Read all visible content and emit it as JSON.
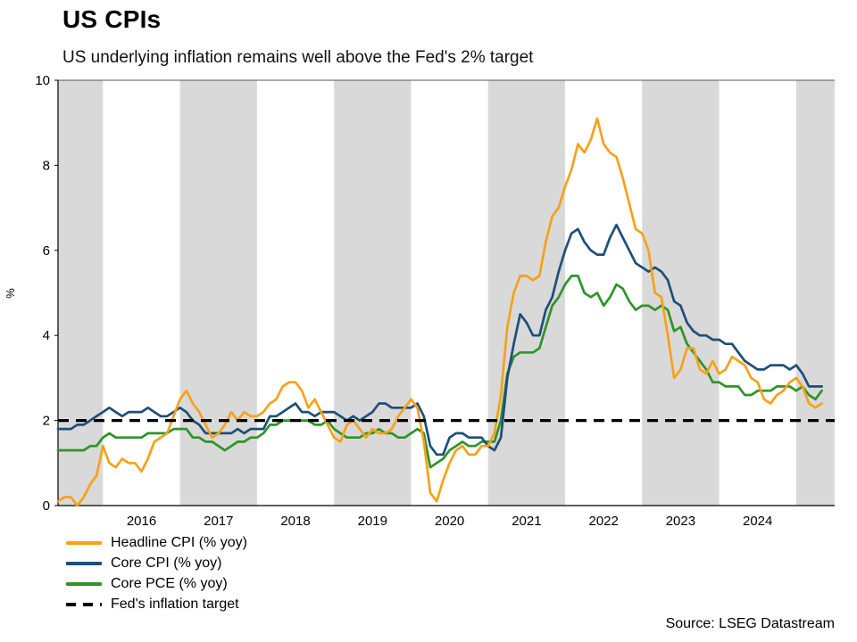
{
  "page": {
    "title": "US CPIs",
    "subtitle": "US underlying inflation remains well above the Fed's 2% target",
    "source": "Source: LSEG Datastream"
  },
  "chart_data": {
    "type": "line",
    "title": "US CPIs",
    "subtitle": "US underlying inflation remains well above the Fed's 2% target",
    "ylabel": "%",
    "ylim": [
      0,
      10
    ],
    "yticks": [
      0,
      2,
      4,
      6,
      8,
      10
    ],
    "frequency": "monthly",
    "x_start": "2015-06",
    "x_end": "2025-05",
    "x_tick_labels": [
      "2016",
      "2017",
      "2018",
      "2019",
      "2020",
      "2021",
      "2022",
      "2023",
      "2024"
    ],
    "grid": false,
    "legend_position": "bottom-left",
    "band_color": "#D9D9D9",
    "shaded_years": [
      2015,
      2017,
      2019,
      2021,
      2023,
      2025
    ],
    "target_line": {
      "label": "Fed's inflation target",
      "value": 2,
      "color": "#000000"
    },
    "series": [
      {
        "name": "Headline CPI (% yoy)",
        "color": "#F7A11A",
        "values": [
          0.1,
          0.2,
          0.2,
          0,
          0.2,
          0.5,
          0.7,
          1.4,
          1,
          0.9,
          1.1,
          1,
          1,
          0.8,
          1.1,
          1.5,
          1.6,
          1.7,
          2.1,
          2.5,
          2.7,
          2.4,
          2.2,
          1.9,
          1.6,
          1.7,
          1.9,
          2.2,
          2,
          2.2,
          2.1,
          2.1,
          2.2,
          2.4,
          2.5,
          2.8,
          2.9,
          2.9,
          2.7,
          2.3,
          2.5,
          2.2,
          1.9,
          1.6,
          1.5,
          1.9,
          2,
          1.8,
          1.6,
          1.8,
          1.7,
          1.7,
          1.8,
          2.1,
          2.3,
          2.5,
          2.3,
          1.5,
          0.3,
          0.1,
          0.6,
          1,
          1.3,
          1.4,
          1.2,
          1.2,
          1.4,
          1.4,
          1.7,
          2.6,
          4.2,
          5,
          5.4,
          5.4,
          5.3,
          5.4,
          6.2,
          6.8,
          7,
          7.5,
          7.9,
          8.5,
          8.3,
          8.6,
          9.1,
          8.5,
          8.3,
          8.2,
          7.7,
          7.1,
          6.5,
          6.4,
          6,
          5,
          4.9,
          4,
          3,
          3.2,
          3.7,
          3.7,
          3.2,
          3.1,
          3.4,
          3.1,
          3.2,
          3.5,
          3.4,
          3.3,
          3,
          2.9,
          2.5,
          2.4,
          2.6,
          2.7,
          2.9,
          3,
          2.8,
          2.4,
          2.3,
          2.4
        ]
      },
      {
        "name": "Core CPI (% yoy)",
        "color": "#1F4E79",
        "values": [
          1.8,
          1.8,
          1.8,
          1.9,
          1.9,
          2,
          2.1,
          2.2,
          2.3,
          2.2,
          2.1,
          2.2,
          2.2,
          2.2,
          2.3,
          2.2,
          2.1,
          2.1,
          2.2,
          2.3,
          2.2,
          2,
          1.9,
          1.7,
          1.7,
          1.7,
          1.7,
          1.7,
          1.8,
          1.7,
          1.8,
          1.8,
          1.8,
          2.1,
          2.1,
          2.2,
          2.3,
          2.4,
          2.2,
          2.2,
          2.1,
          2.2,
          2.2,
          2.2,
          2.1,
          2,
          2.1,
          2,
          2.1,
          2.2,
          2.4,
          2.4,
          2.3,
          2.3,
          2.3,
          2.3,
          2.4,
          2.1,
          1.4,
          1.2,
          1.2,
          1.6,
          1.7,
          1.7,
          1.6,
          1.6,
          1.6,
          1.4,
          1.3,
          1.6,
          3,
          3.8,
          4.5,
          4.3,
          4,
          4,
          4.6,
          4.9,
          5.5,
          6,
          6.4,
          6.5,
          6.2,
          6,
          5.9,
          5.9,
          6.3,
          6.6,
          6.3,
          6,
          5.7,
          5.6,
          5.5,
          5.6,
          5.5,
          5.3,
          4.8,
          4.7,
          4.3,
          4.1,
          4,
          4,
          3.9,
          3.9,
          3.8,
          3.8,
          3.6,
          3.4,
          3.3,
          3.2,
          3.2,
          3.3,
          3.3,
          3.3,
          3.2,
          3.3,
          3.1,
          2.8,
          2.8,
          2.8
        ]
      },
      {
        "name": "Core PCE (% yoy)",
        "color": "#2E9428",
        "values": [
          1.3,
          1.3,
          1.3,
          1.3,
          1.3,
          1.4,
          1.4,
          1.6,
          1.7,
          1.6,
          1.6,
          1.6,
          1.6,
          1.6,
          1.7,
          1.7,
          1.7,
          1.7,
          1.8,
          1.8,
          1.8,
          1.6,
          1.6,
          1.5,
          1.5,
          1.4,
          1.3,
          1.4,
          1.5,
          1.5,
          1.6,
          1.6,
          1.7,
          1.9,
          1.9,
          2,
          2,
          2,
          2,
          2,
          1.9,
          1.9,
          2,
          1.8,
          1.7,
          1.6,
          1.6,
          1.6,
          1.7,
          1.7,
          1.8,
          1.7,
          1.7,
          1.6,
          1.6,
          1.7,
          1.8,
          1.7,
          0.9,
          1,
          1.1,
          1.3,
          1.4,
          1.5,
          1.4,
          1.4,
          1.5,
          1.5,
          1.5,
          2,
          3.1,
          3.5,
          3.6,
          3.6,
          3.6,
          3.7,
          4.2,
          4.7,
          4.9,
          5.2,
          5.4,
          5.4,
          5,
          4.9,
          5,
          4.7,
          4.9,
          5.2,
          5.1,
          4.8,
          4.6,
          4.7,
          4.7,
          4.6,
          4.7,
          4.6,
          4.1,
          4.2,
          3.8,
          3.6,
          3.4,
          3.2,
          2.9,
          2.9,
          2.8,
          2.8,
          2.8,
          2.6,
          2.6,
          2.7,
          2.7,
          2.7,
          2.8,
          2.8,
          2.8,
          2.7,
          2.8,
          2.6,
          2.5,
          2.7
        ]
      }
    ]
  }
}
